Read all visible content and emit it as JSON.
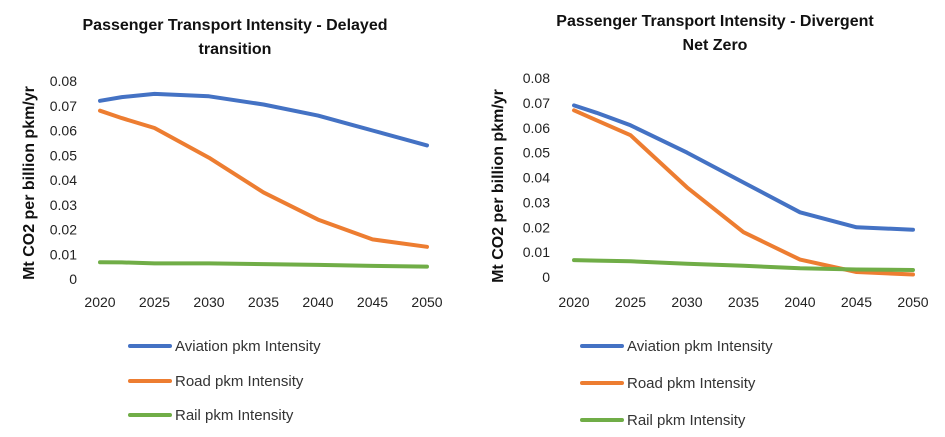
{
  "chart_data": [
    {
      "type": "line",
      "title_lines": [
        "Passenger Transport Intensity - Delayed",
        "transition"
      ],
      "xlabel": "",
      "ylabel": "Mt CO2 per billion pkm/yr",
      "x": [
        2020,
        2022,
        2025,
        2030,
        2035,
        2040,
        2045,
        2050
      ],
      "xticks": [
        "2020",
        "2025",
        "2030",
        "2035",
        "2040",
        "2045",
        "2050"
      ],
      "yticks": [
        "0",
        "0.01",
        "0.02",
        "0.03",
        "0.04",
        "0.05",
        "0.06",
        "0.07",
        "0.08"
      ],
      "ylim": [
        0,
        0.08
      ],
      "grid": false,
      "legend_position": "bottom",
      "series": [
        {
          "name": "Aviation pkm Intensity",
          "color": "#4472C4",
          "values": [
            0.072,
            0.0735,
            0.0748,
            0.0738,
            0.0705,
            0.066,
            0.06,
            0.054
          ]
        },
        {
          "name": "Road pkm Intensity",
          "color": "#ED7D31",
          "values": [
            0.068,
            0.065,
            0.061,
            0.049,
            0.035,
            0.024,
            0.016,
            0.013
          ]
        },
        {
          "name": "Rail pkm Intensity",
          "color": "#70AD47",
          "values": [
            0.0068,
            0.0067,
            0.0063,
            0.0063,
            0.006,
            0.0057,
            0.0053,
            0.005
          ]
        }
      ]
    },
    {
      "type": "line",
      "title_lines": [
        "Passenger Transport Intensity - Divergent",
        "Net Zero"
      ],
      "xlabel": "",
      "ylabel": "Mt CO2 per billion pkm/yr",
      "x": [
        2020,
        2022,
        2025,
        2030,
        2035,
        2040,
        2045,
        2050
      ],
      "xticks": [
        "2020",
        "2025",
        "2030",
        "2035",
        "2040",
        "2045",
        "2050"
      ],
      "yticks": [
        "0",
        "0.01",
        "0.02",
        "0.03",
        "0.04",
        "0.05",
        "0.06",
        "0.07",
        "0.08"
      ],
      "ylim": [
        0,
        0.08
      ],
      "grid": false,
      "legend_position": "bottom",
      "series": [
        {
          "name": "Aviation pkm Intensity",
          "color": "#4472C4",
          "values": [
            0.069,
            0.066,
            0.061,
            0.05,
            0.038,
            0.026,
            0.02,
            0.019
          ]
        },
        {
          "name": "Road pkm Intensity",
          "color": "#ED7D31",
          "values": [
            0.067,
            0.063,
            0.057,
            0.036,
            0.018,
            0.007,
            0.002,
            0.001
          ]
        },
        {
          "name": "Rail pkm Intensity",
          "color": "#70AD47",
          "values": [
            0.0068,
            0.0066,
            0.0063,
            0.0053,
            0.0045,
            0.0035,
            0.003,
            0.0028
          ]
        }
      ]
    }
  ]
}
